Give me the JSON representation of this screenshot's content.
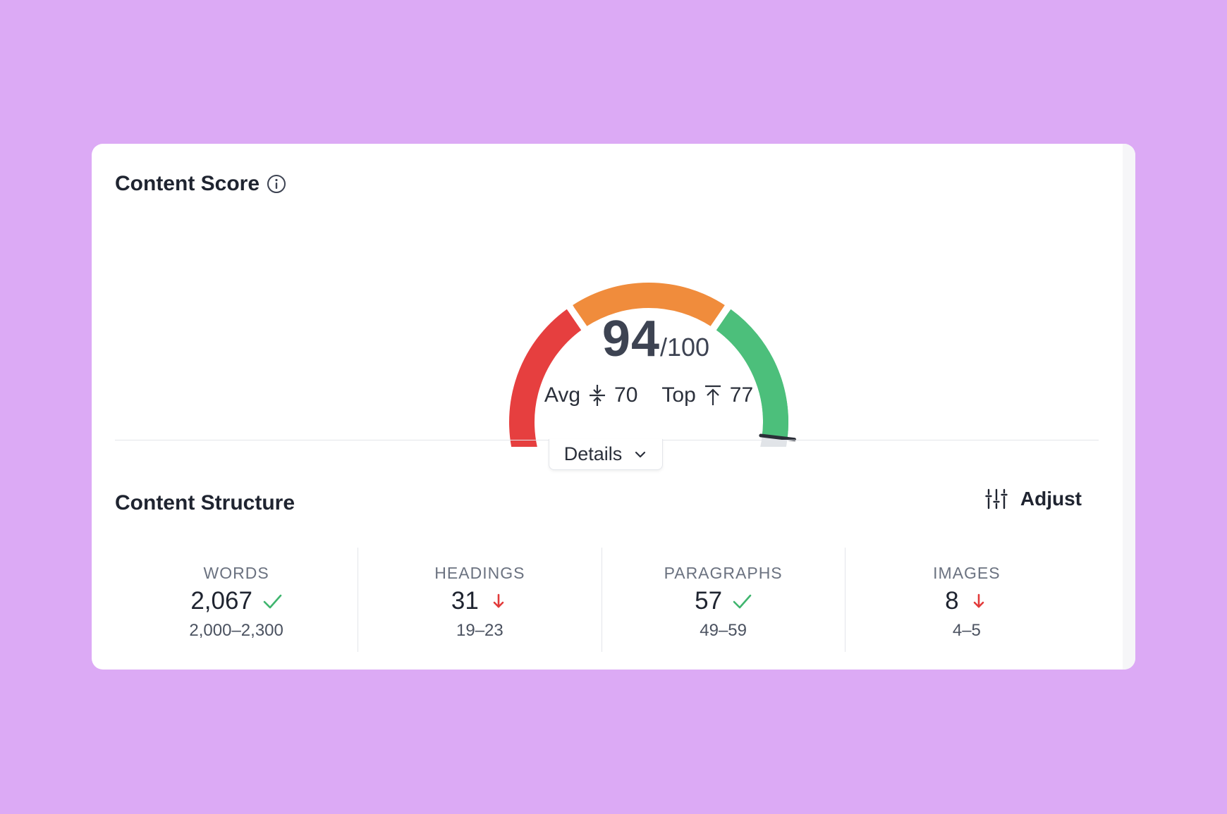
{
  "content_score": {
    "title": "Content Score",
    "info_icon": "info-icon",
    "score": "94",
    "score_max": "/100",
    "score_value": 94,
    "gauge_colors": {
      "low": "#e63f3f",
      "mid": "#f08c3c",
      "high": "#4cbf7b",
      "empty": "#e1e4e8",
      "marker": "#2b2f38"
    },
    "benchmarks": [
      {
        "label": "Avg",
        "icon": "compress-vertical-icon",
        "value": "70"
      },
      {
        "label": "Top",
        "icon": "arrow-up-to-top-icon",
        "value": "77"
      }
    ],
    "details_label": "Details"
  },
  "content_structure": {
    "title": "Content Structure",
    "adjust_label": "Adjust",
    "metrics": [
      {
        "label": "WORDS",
        "value": "2,067",
        "status": "ok",
        "range": "2,000–2,300"
      },
      {
        "label": "HEADINGS",
        "value": "31",
        "status": "down",
        "range": "19–23"
      },
      {
        "label": "PARAGRAPHS",
        "value": "57",
        "status": "ok",
        "range": "49–59"
      },
      {
        "label": "IMAGES",
        "value": "8",
        "status": "down",
        "range": "4–5"
      }
    ],
    "status_colors": {
      "ok": "#3fb56e",
      "down": "#e23a3a"
    }
  }
}
